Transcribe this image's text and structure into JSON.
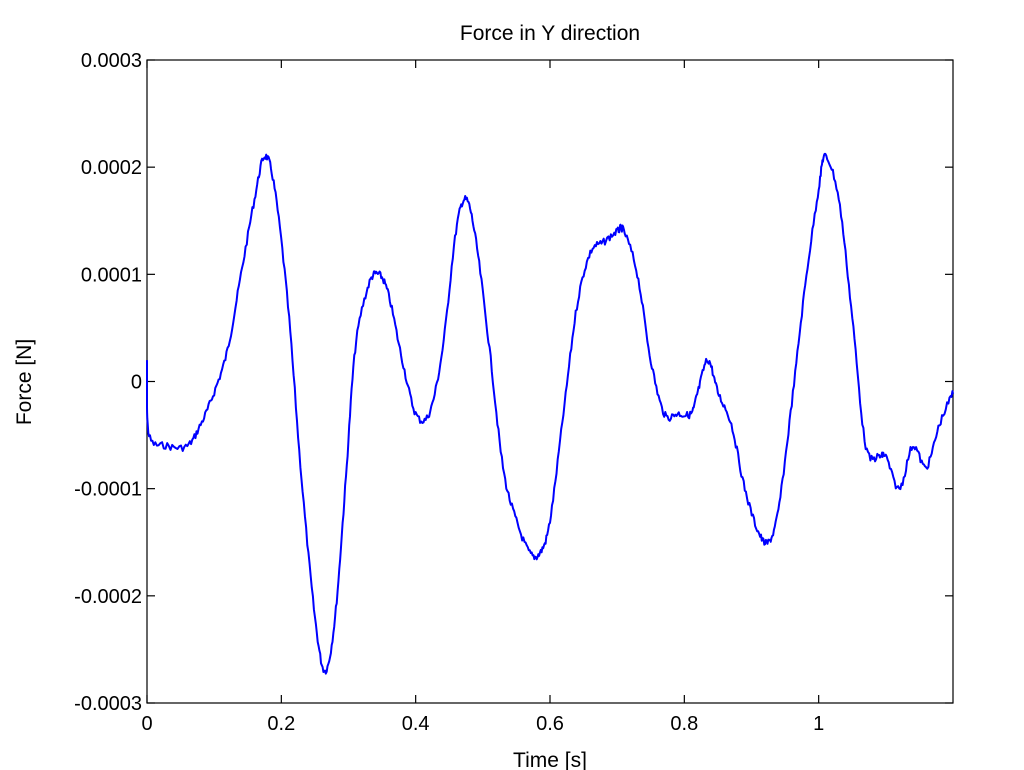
{
  "chart_data": {
    "type": "line",
    "title": "Force in Y direction",
    "xlabel": "Time [s]",
    "ylabel": "Force [N]",
    "xlim": [
      0,
      1.2
    ],
    "ylim": [
      -0.0003,
      0.0003
    ],
    "grid": false,
    "line_color": "#0000ff",
    "x_ticks": [
      0,
      0.2,
      0.4,
      0.6,
      0.8,
      1
    ],
    "x_tick_labels": [
      "0",
      "0.2",
      "0.4",
      "0.6",
      "0.8",
      "1"
    ],
    "y_ticks": [
      0.0003,
      0.0002,
      0.0001,
      0,
      -0.0001,
      -0.0002,
      -0.0003
    ],
    "y_tick_labels": [
      "0.0003",
      "0.0002",
      "0.0001",
      "0",
      "-0.0001",
      "-0.0002",
      "-0.0003"
    ],
    "series": [
      {
        "x": [
          0,
          0.003,
          0.03,
          0.06,
          0.08,
          0.1,
          0.12,
          0.14,
          0.16,
          0.175,
          0.19,
          0.21,
          0.23,
          0.25,
          0.265,
          0.28,
          0.295,
          0.31,
          0.33,
          0.345,
          0.36,
          0.38,
          0.4,
          0.42,
          0.44,
          0.46,
          0.475,
          0.49,
          0.51,
          0.53,
          0.55,
          0.57,
          0.585,
          0.6,
          0.62,
          0.64,
          0.66,
          0.68,
          0.7,
          0.71,
          0.73,
          0.75,
          0.77,
          0.79,
          0.81,
          0.82,
          0.835,
          0.85,
          0.87,
          0.89,
          0.91,
          0.925,
          0.94,
          0.96,
          0.98,
          1.0,
          1.01,
          1.03,
          1.05,
          1.07,
          1.09,
          1.1,
          1.12,
          1.14,
          1.16,
          1.18,
          1.2
        ],
        "y": [
          2e-05,
          -5e-05,
          -6e-05,
          -6e-05,
          -4e-05,
          -1e-05,
          3e-05,
          0.0001,
          0.00017,
          0.00021,
          0.00018,
          7e-05,
          -9e-05,
          -0.00022,
          -0.00027,
          -0.00022,
          -0.0001,
          3e-05,
          9e-05,
          0.0001,
          8e-05,
          2e-05,
          -3e-05,
          -3e-05,
          3e-05,
          0.00014,
          0.00017,
          0.00013,
          3e-05,
          -8e-05,
          -0.00013,
          -0.00016,
          -0.00016,
          -0.00013,
          -3e-05,
          7e-05,
          0.00012,
          0.00013,
          0.00014,
          0.00014,
          0.0001,
          2e-05,
          -3e-05,
          -3e-05,
          -3e-05,
          -1e-05,
          2e-05,
          -1e-05,
          -4e-05,
          -0.0001,
          -0.00014,
          -0.00015,
          -0.00012,
          -2e-05,
          9e-05,
          0.00018,
          0.00021,
          0.00017,
          6e-05,
          -6e-05,
          -7e-05,
          -7e-05,
          -0.0001,
          -6e-05,
          -8e-05,
          -4e-05,
          -1e-05
        ]
      }
    ]
  }
}
